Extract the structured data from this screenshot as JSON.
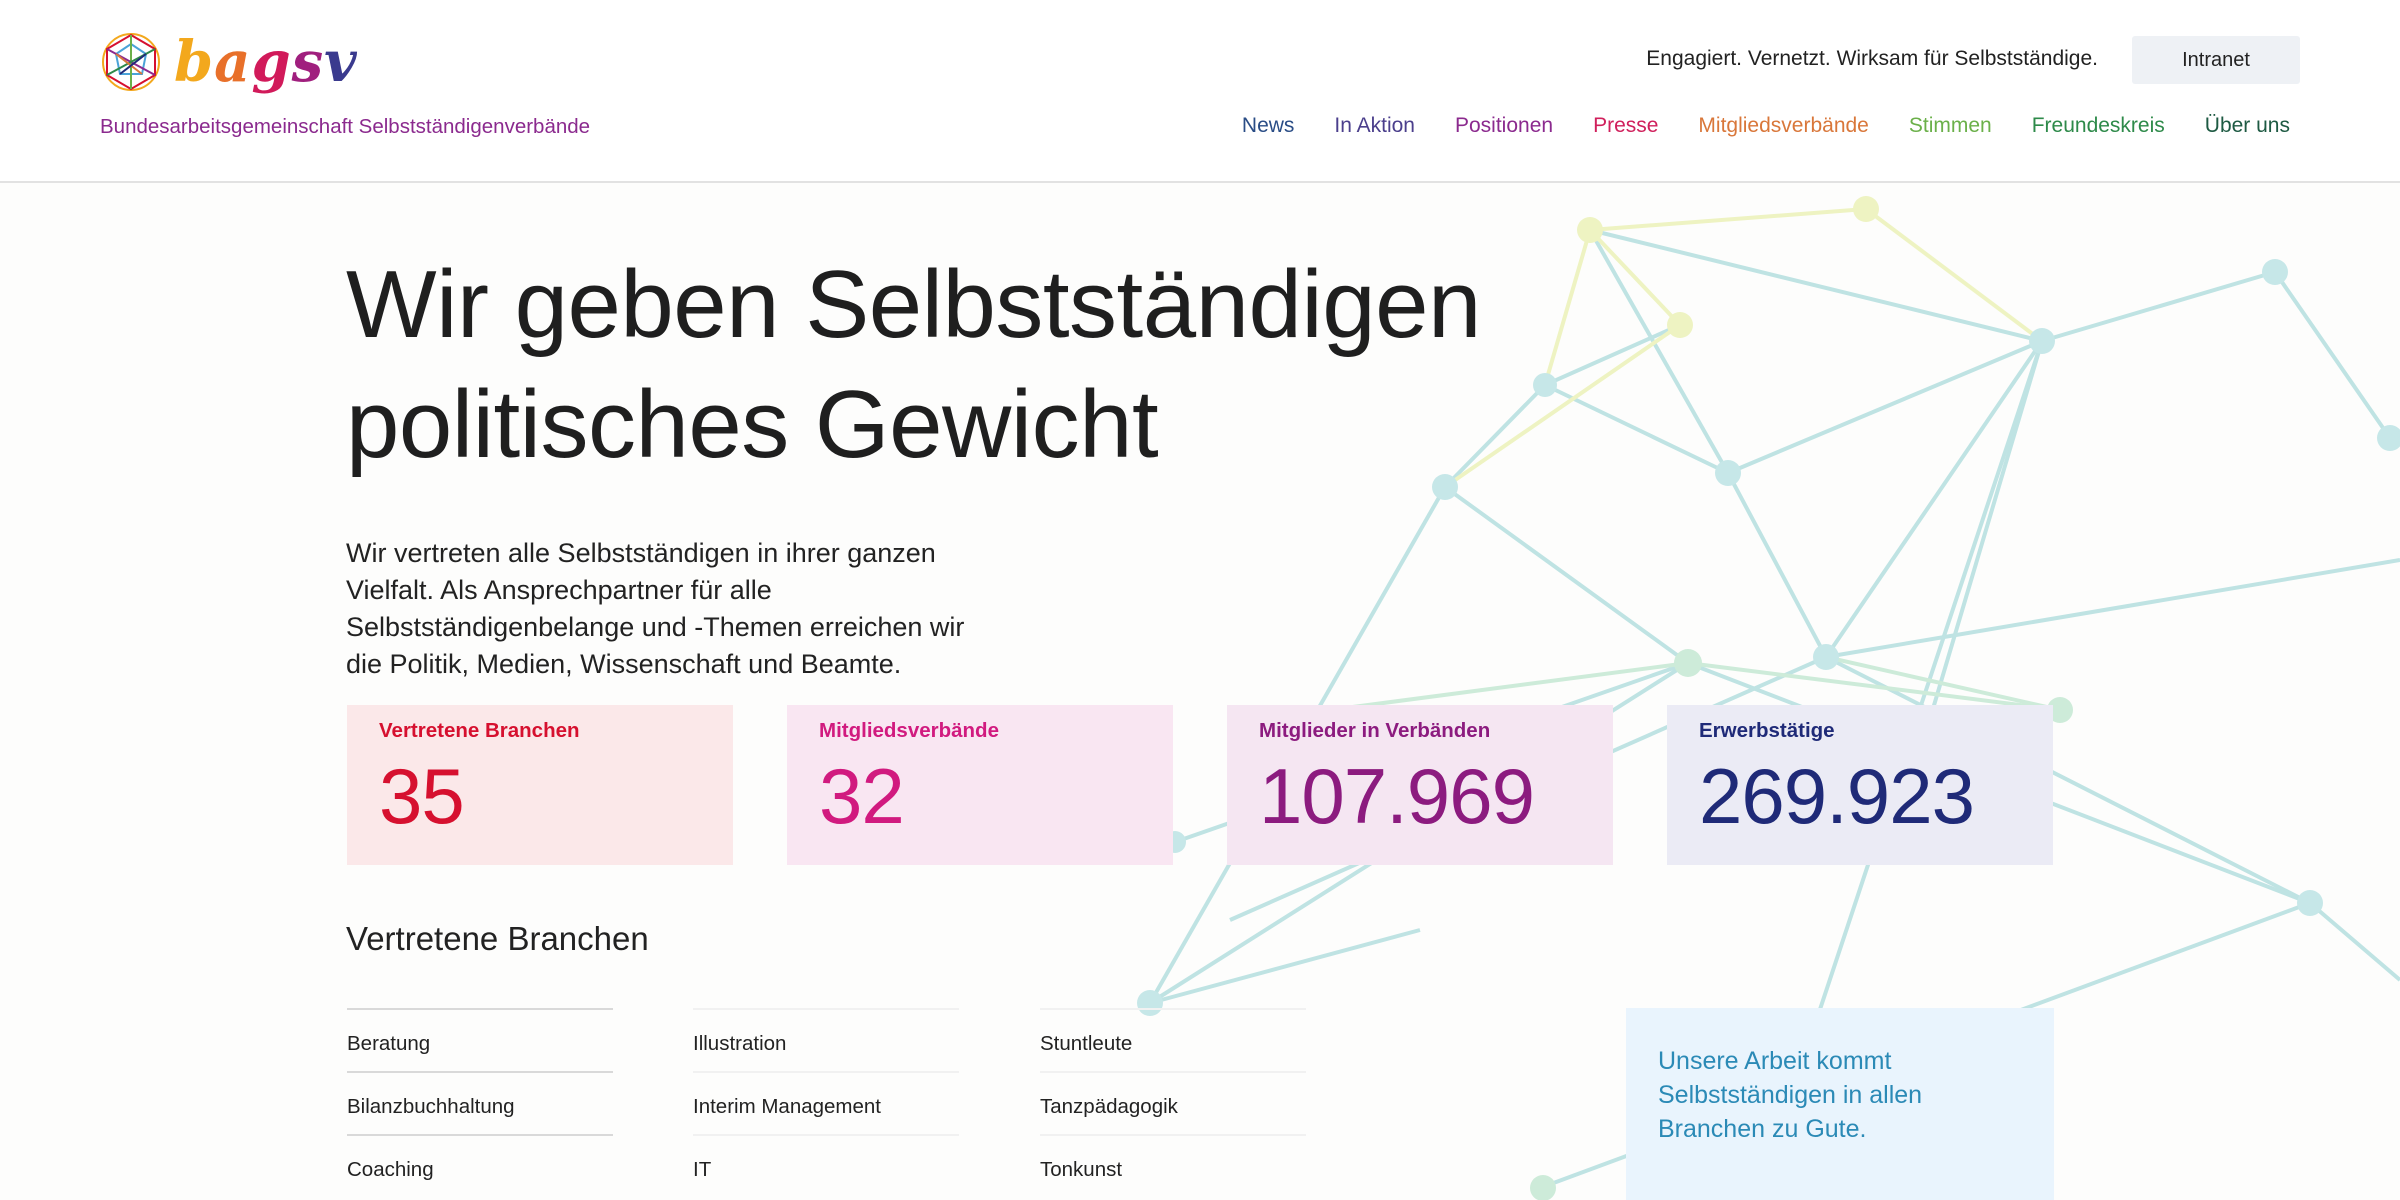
{
  "header": {
    "logo_text": "bagsv",
    "org_name": "Bundesarbeitsgemeinschaft Selbstständigenverbände",
    "slogan": "Engagiert. Vernetzt. Wirksam für Selbstständige.",
    "intranet_label": "Intranet",
    "nav": [
      {
        "label": "News",
        "color": "#2a4d86"
      },
      {
        "label": "In Aktion",
        "color": "#4b3f8c"
      },
      {
        "label": "Positionen",
        "color": "#8b2a8e"
      },
      {
        "label": "Presse",
        "color": "#d0205c"
      },
      {
        "label": "Mitgliedsverbände",
        "color": "#d9773a"
      },
      {
        "label": "Stimmen",
        "color": "#6bb04a"
      },
      {
        "label": "Freundeskreis",
        "color": "#2e8a4a"
      },
      {
        "label": "Über uns",
        "color": "#1e5a43"
      }
    ]
  },
  "hero": {
    "title_line1": "Wir geben Selbstständigen",
    "title_line2": "politisches Gewicht",
    "text": "Wir vertreten alle Selbstständigen in ihrer ganzen Vielfalt. Als Ansprechpartner für alle Selbstständigenbelange und -Themen erreichen wir die Politik, Medien, Wissenschaft und Beamte."
  },
  "stats": [
    {
      "label": "Vertretene Branchen",
      "value": "35",
      "color": "#d6102f",
      "bg": "#fbe8e9"
    },
    {
      "label": "Mitgliedsverbände",
      "value": "32",
      "color": "#d11a7f",
      "bg": "#f9e6f2"
    },
    {
      "label": "Mitglieder in Verbänden",
      "value": "107.969",
      "color": "#8c1b7f",
      "bg": "#f5e6f2"
    },
    {
      "label": "Erwerbstätige",
      "value": "269.923",
      "color": "#1f2a78",
      "bg": "#ebebf5"
    }
  ],
  "branchen": {
    "title": "Vertretene Branchen",
    "columns": [
      [
        "Beratung",
        "Bilanzbuchhaltung",
        "Coaching"
      ],
      [
        "Illustration",
        "Interim Management",
        "IT"
      ],
      [
        "Stuntleute",
        "Tanzpädagogik",
        "Tonkunst"
      ]
    ]
  },
  "info_box": {
    "text": "Unsere Arbeit kommt Selbstständigen in allen Branchen zu Gute."
  },
  "colors": {
    "org_name": "#8b2a8e",
    "network_line": "#bfe3e3",
    "network_node": "#c6e7e8",
    "network_yellow": "#eef3c2",
    "network_green": "#cdebd9",
    "info_bg": "#e9f4fd",
    "info_text": "#2b8ab6"
  }
}
